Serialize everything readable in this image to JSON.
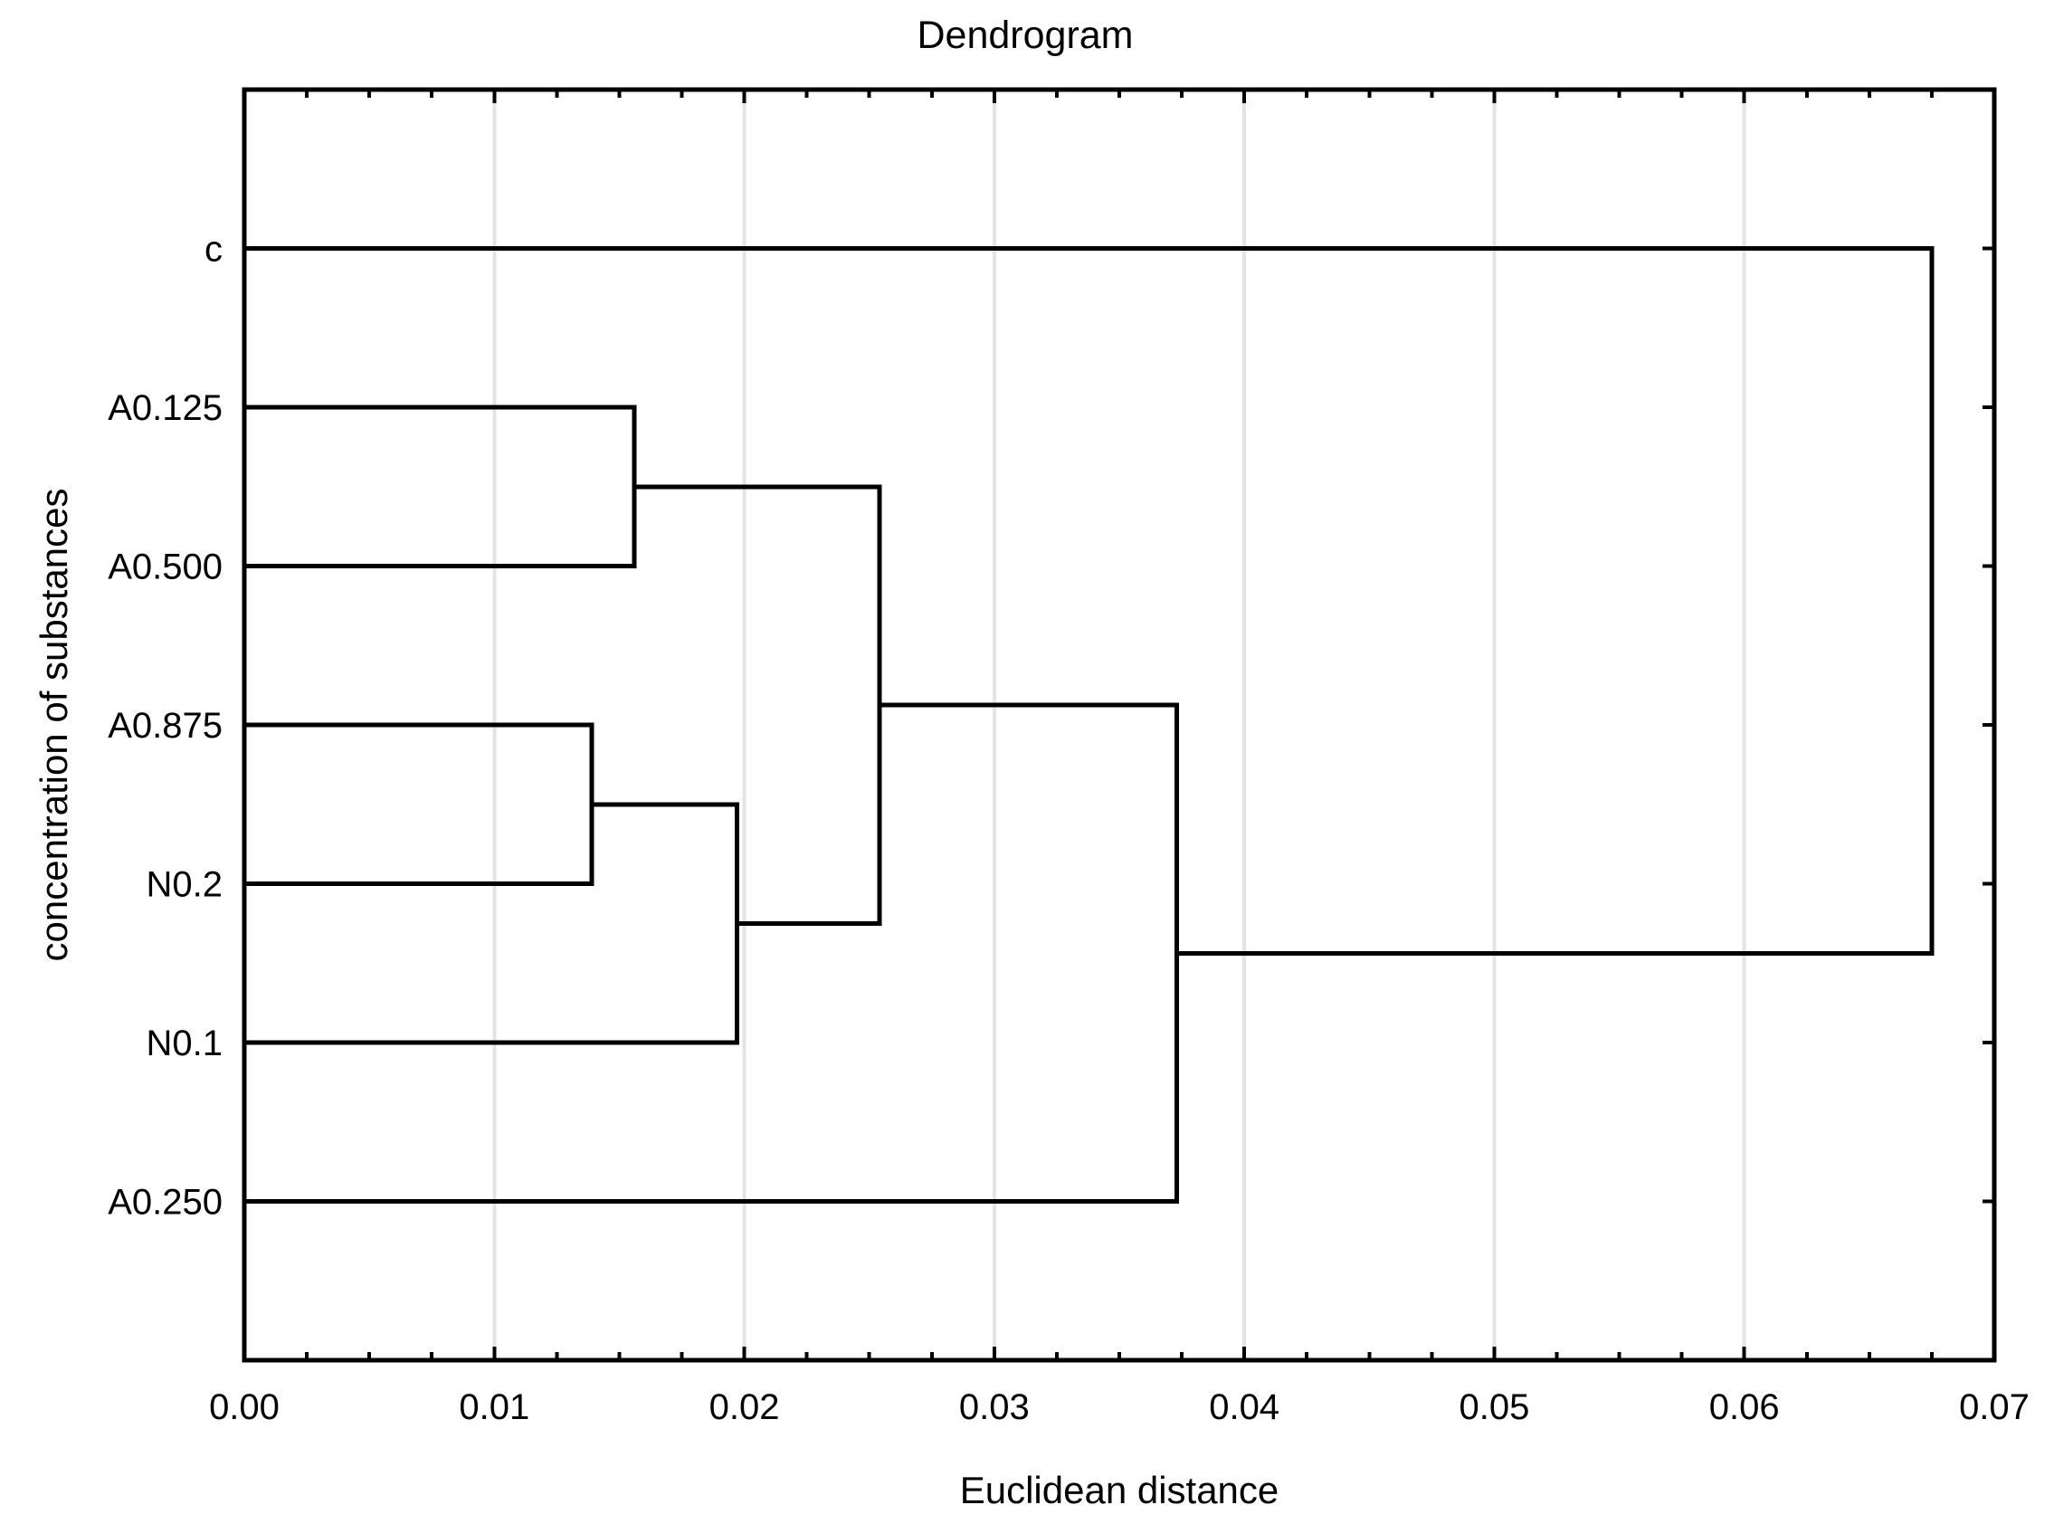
{
  "title": "Dendrogram",
  "chart_data": {
    "type": "dendrogram",
    "orientation": "left-to-right",
    "title": "Dendrogram",
    "xlabel": "Euclidean distance",
    "ylabel": "concentration of substances",
    "xlim": [
      0,
      0.07
    ],
    "x_major_ticks": [
      {
        "value": 0.0,
        "label": "0.00"
      },
      {
        "value": 0.01,
        "label": "0.01"
      },
      {
        "value": 0.02,
        "label": "0.02"
      },
      {
        "value": 0.03,
        "label": "0.03"
      },
      {
        "value": 0.04,
        "label": "0.04"
      },
      {
        "value": 0.05,
        "label": "0.05"
      },
      {
        "value": 0.06,
        "label": "0.06"
      },
      {
        "value": 0.07,
        "label": "0.07"
      }
    ],
    "x_minor_tick_step": 0.0025,
    "gridline_values": [
      0.01,
      0.02,
      0.03,
      0.04,
      0.05,
      0.06
    ],
    "grid": true,
    "legend": false,
    "leaves": [
      "c",
      "A0.125",
      "A0.500",
      "A0.875",
      "N0.2",
      "N0.1",
      "A0.250"
    ],
    "linkage": [
      {
        "id": "M0",
        "children": [
          "A0.875",
          "N0.2"
        ],
        "distance": 0.0139
      },
      {
        "id": "M1",
        "children": [
          "M0",
          "N0.1"
        ],
        "distance": 0.0197
      },
      {
        "id": "M2",
        "children": [
          "A0.125",
          "A0.500"
        ],
        "distance": 0.0156
      },
      {
        "id": "M3",
        "children": [
          "M2",
          "M1"
        ],
        "distance": 0.0254
      },
      {
        "id": "M4",
        "children": [
          "M3",
          "A0.250"
        ],
        "distance": 0.0373
      },
      {
        "id": "M5",
        "children": [
          "c",
          "M4"
        ],
        "distance": 0.0675
      }
    ]
  },
  "colors": {
    "line": "#000000",
    "grid": "#e4e4e4",
    "background": "#ffffff",
    "text": "#000000"
  }
}
